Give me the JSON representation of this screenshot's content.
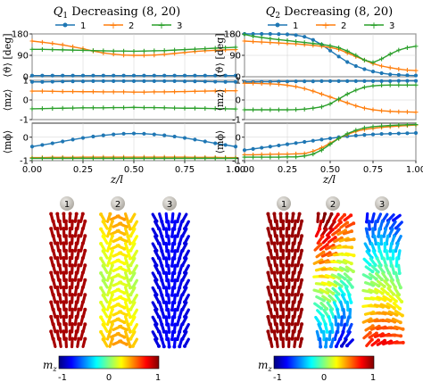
{
  "colors": {
    "s1": "#1f77b4",
    "s2": "#ff7f0e",
    "s3": "#2ca02c"
  },
  "chart_data": [
    {
      "type": "line",
      "title": "Q1 Decreasing (8,20)",
      "title_parts": {
        "q": "Q",
        "sub": "1",
        "rest": " Decreasing (8, 20)"
      },
      "legend": [
        "1",
        "2",
        "3"
      ],
      "legend_placement": "top",
      "xlabel": "z/l",
      "xticks": [
        "0.00",
        "0.25",
        "0.50",
        "0.75",
        "1.00"
      ],
      "grid": true,
      "x": [
        0.0,
        0.05,
        0.1,
        0.15,
        0.2,
        0.25,
        0.3,
        0.35,
        0.4,
        0.45,
        0.5,
        0.55,
        0.6,
        0.65,
        0.7,
        0.75,
        0.8,
        0.85,
        0.9,
        0.95,
        1.0
      ],
      "panels": [
        {
          "ylabel": "⟨ϑ⟩ [deg]",
          "yticks": [
            "0",
            "90",
            "180"
          ],
          "ylim": [
            0,
            180
          ],
          "series": [
            {
              "name": "1",
              "values": [
                5,
                5,
                5,
                5,
                5,
                5,
                5,
                5,
                5,
                5,
                5,
                5,
                5,
                5,
                5,
                5,
                5,
                5,
                5,
                5,
                5
              ]
            },
            {
              "name": "2",
              "values": [
                150,
                145,
                140,
                134,
                126,
                118,
                108,
                100,
                95,
                91,
                90,
                90,
                91,
                94,
                98,
                102,
                106,
                109,
                111,
                113,
                114
              ]
            },
            {
              "name": "3",
              "values": [
                115,
                115,
                114,
                113,
                112,
                111,
                110,
                109,
                108,
                108,
                107,
                108,
                109,
                110,
                112,
                114,
                116,
                118,
                120,
                122,
                124
              ]
            }
          ]
        },
        {
          "ylabel": "⟨mz⟩",
          "yticks": [
            "-1",
            "0",
            "1"
          ],
          "ylim": [
            -1,
            1
          ],
          "series": [
            {
              "name": "1",
              "values": [
                0.92,
                0.92,
                0.93,
                0.94,
                0.95,
                0.95,
                0.96,
                0.96,
                0.96,
                0.96,
                0.96,
                0.96,
                0.96,
                0.96,
                0.96,
                0.95,
                0.95,
                0.94,
                0.93,
                0.92,
                0.92
              ]
            },
            {
              "name": "2",
              "values": [
                0.45,
                0.45,
                0.44,
                0.43,
                0.43,
                0.42,
                0.42,
                0.41,
                0.41,
                0.41,
                0.4,
                0.4,
                0.41,
                0.41,
                0.42,
                0.43,
                0.44,
                0.45,
                0.46,
                0.47,
                0.47
              ]
            },
            {
              "name": "3",
              "values": [
                -0.45,
                -0.44,
                -0.43,
                -0.42,
                -0.41,
                -0.4,
                -0.4,
                -0.4,
                -0.39,
                -0.39,
                -0.38,
                -0.39,
                -0.39,
                -0.4,
                -0.41,
                -0.42,
                -0.42,
                -0.43,
                -0.44,
                -0.45,
                -0.46
              ]
            }
          ]
        },
        {
          "ylabel": "⟨mϕ⟩",
          "yticks": [
            "-1",
            "0"
          ],
          "ylim": [
            -1,
            0.6
          ],
          "series": [
            {
              "name": "1",
              "values": [
                -0.4,
                -0.33,
                -0.26,
                -0.18,
                -0.1,
                -0.03,
                0.03,
                0.08,
                0.12,
                0.15,
                0.16,
                0.15,
                0.12,
                0.08,
                0.03,
                -0.03,
                -0.1,
                -0.18,
                -0.26,
                -0.33,
                -0.4
              ]
            },
            {
              "name": "2",
              "values": [
                -0.87,
                -0.87,
                -0.86,
                -0.86,
                -0.86,
                -0.85,
                -0.85,
                -0.85,
                -0.85,
                -0.85,
                -0.85,
                -0.85,
                -0.85,
                -0.85,
                -0.85,
                -0.85,
                -0.86,
                -0.86,
                -0.86,
                -0.87,
                -0.87
              ]
            },
            {
              "name": "3",
              "values": [
                -0.9,
                -0.9,
                -0.9,
                -0.9,
                -0.9,
                -0.9,
                -0.9,
                -0.9,
                -0.9,
                -0.9,
                -0.9,
                -0.9,
                -0.9,
                -0.9,
                -0.9,
                -0.9,
                -0.9,
                -0.9,
                -0.9,
                -0.9,
                -0.9
              ]
            }
          ]
        }
      ]
    },
    {
      "type": "line",
      "title": "Q2 Decreasing (8,20)",
      "title_parts": {
        "q": "Q",
        "sub": "2",
        "rest": " Decreasing (8, 20)"
      },
      "legend": [
        "1",
        "2",
        "3"
      ],
      "legend_placement": "top",
      "xlabel": "z/l",
      "xticks": [
        "0.00",
        "0.25",
        "0.50",
        "0.75",
        "1.00"
      ],
      "grid": true,
      "x": [
        0.0,
        0.05,
        0.1,
        0.15,
        0.2,
        0.25,
        0.3,
        0.35,
        0.4,
        0.45,
        0.5,
        0.55,
        0.6,
        0.65,
        0.7,
        0.75,
        0.8,
        0.85,
        0.9,
        0.95,
        1.0
      ],
      "panels": [
        {
          "ylabel": "⟨ϑ⟩ [deg]",
          "yticks": [
            "0",
            "90",
            "180"
          ],
          "ylim": [
            0,
            180
          ],
          "series": [
            {
              "name": "1",
              "values": [
                180,
                180,
                180,
                180,
                179,
                178,
                175,
                168,
                155,
                135,
                110,
                85,
                62,
                45,
                32,
                22,
                15,
                10,
                8,
                6,
                5
              ]
            },
            {
              "name": "2",
              "values": [
                150,
                148,
                146,
                144,
                142,
                140,
                138,
                135,
                132,
                128,
                123,
                115,
                100,
                85,
                70,
                55,
                45,
                38,
                32,
                28,
                26
              ]
            },
            {
              "name": "3",
              "values": [
                178,
                170,
                165,
                160,
                156,
                152,
                148,
                144,
                140,
                136,
                130,
                122,
                108,
                90,
                70,
                60,
                75,
                95,
                112,
                122,
                128
              ]
            }
          ]
        },
        {
          "ylabel": "⟨mz⟩",
          "yticks": [
            "-1",
            "0",
            "1"
          ],
          "ylim": [
            -1,
            1
          ],
          "series": [
            {
              "name": "1",
              "values": [
                0.92,
                0.92,
                0.93,
                0.93,
                0.94,
                0.94,
                0.95,
                0.95,
                0.95,
                0.96,
                0.96,
                0.96,
                0.96,
                0.96,
                0.96,
                0.96,
                0.96,
                0.96,
                0.97,
                0.97,
                0.97
              ]
            },
            {
              "name": "2",
              "values": [
                0.85,
                0.85,
                0.84,
                0.82,
                0.8,
                0.75,
                0.68,
                0.58,
                0.45,
                0.3,
                0.15,
                0.0,
                -0.15,
                -0.3,
                -0.42,
                -0.5,
                -0.55,
                -0.58,
                -0.6,
                -0.61,
                -0.62
              ]
            },
            {
              "name": "3",
              "values": [
                -0.5,
                -0.5,
                -0.5,
                -0.5,
                -0.5,
                -0.5,
                -0.49,
                -0.47,
                -0.42,
                -0.35,
                -0.2,
                0.05,
                0.3,
                0.5,
                0.65,
                0.72,
                0.75,
                0.76,
                0.76,
                0.76,
                0.76
              ]
            }
          ]
        },
        {
          "ylabel": "⟨mϕ⟩",
          "yticks": [
            "-1",
            "0"
          ],
          "ylim": [
            -1,
            0.6
          ],
          "series": [
            {
              "name": "1",
              "values": [
                -0.55,
                -0.5,
                -0.45,
                -0.4,
                -0.35,
                -0.3,
                -0.25,
                -0.2,
                -0.15,
                -0.1,
                -0.05,
                0.0,
                0.04,
                0.07,
                0.1,
                0.12,
                0.14,
                0.15,
                0.16,
                0.17,
                0.18
              ]
            },
            {
              "name": "2",
              "values": [
                -0.75,
                -0.75,
                -0.74,
                -0.73,
                -0.72,
                -0.72,
                -0.71,
                -0.7,
                -0.6,
                -0.45,
                -0.25,
                -0.05,
                0.12,
                0.25,
                0.33,
                0.38,
                0.42,
                0.45,
                0.48,
                0.5,
                0.52
              ]
            },
            {
              "name": "3",
              "values": [
                -0.85,
                -0.85,
                -0.85,
                -0.85,
                -0.85,
                -0.84,
                -0.84,
                -0.8,
                -0.72,
                -0.55,
                -0.3,
                -0.05,
                0.15,
                0.3,
                0.4,
                0.45,
                0.48,
                0.5,
                0.52,
                0.53,
                0.54
              ]
            }
          ]
        }
      ]
    }
  ],
  "render_groups": [
    {
      "markers": [
        "1",
        "2",
        "3"
      ],
      "colorbar": {
        "label": "m",
        "label_sub": "z",
        "ticks": [
          "-1",
          "0",
          "1"
        ]
      }
    },
    {
      "markers": [
        "1",
        "2",
        "3"
      ],
      "colorbar": {
        "label": "m",
        "label_sub": "z",
        "ticks": [
          "-1",
          "0",
          "1"
        ]
      }
    }
  ]
}
